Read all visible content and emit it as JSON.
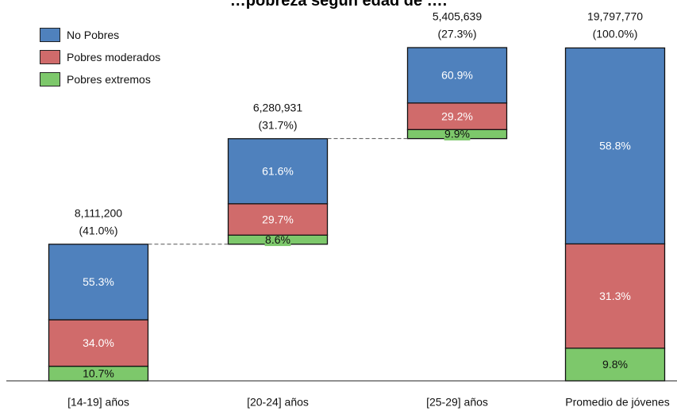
{
  "title": "…pobreza según edad de ….",
  "legend": [
    {
      "label": "No Pobres",
      "color": "#4f81bd"
    },
    {
      "label": "Pobres moderados",
      "color": "#d06b6b"
    },
    {
      "label": "Pobres extremos",
      "color": "#7dc86b"
    }
  ],
  "chart_data": {
    "type": "bar",
    "stacked": true,
    "categories": [
      "[14-19] años",
      "[20-24] años",
      "[25-29] años",
      "Promedio de jóvenes"
    ],
    "totals": [
      "8,111,200",
      "6,280,931",
      "5,405,639",
      "19,797,770"
    ],
    "shares": [
      "(41.0%)",
      "(31.7%)",
      "(27.3%)",
      "(100.0%)"
    ],
    "share_values": [
      41.0,
      31.7,
      27.3,
      100.0
    ],
    "series": [
      {
        "name": "Pobres extremos",
        "values": [
          10.7,
          8.6,
          9.9,
          9.8
        ],
        "labels": [
          "10.7%",
          "8.6%",
          "9.9%",
          "9.8%"
        ]
      },
      {
        "name": "Pobres moderados",
        "values": [
          34.0,
          29.7,
          29.2,
          31.3
        ],
        "labels": [
          "34.0%",
          "29.7%",
          "29.2%",
          "31.3%"
        ]
      },
      {
        "name": "No Pobres",
        "values": [
          55.3,
          61.6,
          60.9,
          58.8
        ],
        "labels": [
          "55.3%",
          "61.6%",
          "60.9%",
          "58.8%"
        ]
      }
    ],
    "waterfall": true,
    "legend_position": "top-left"
  }
}
